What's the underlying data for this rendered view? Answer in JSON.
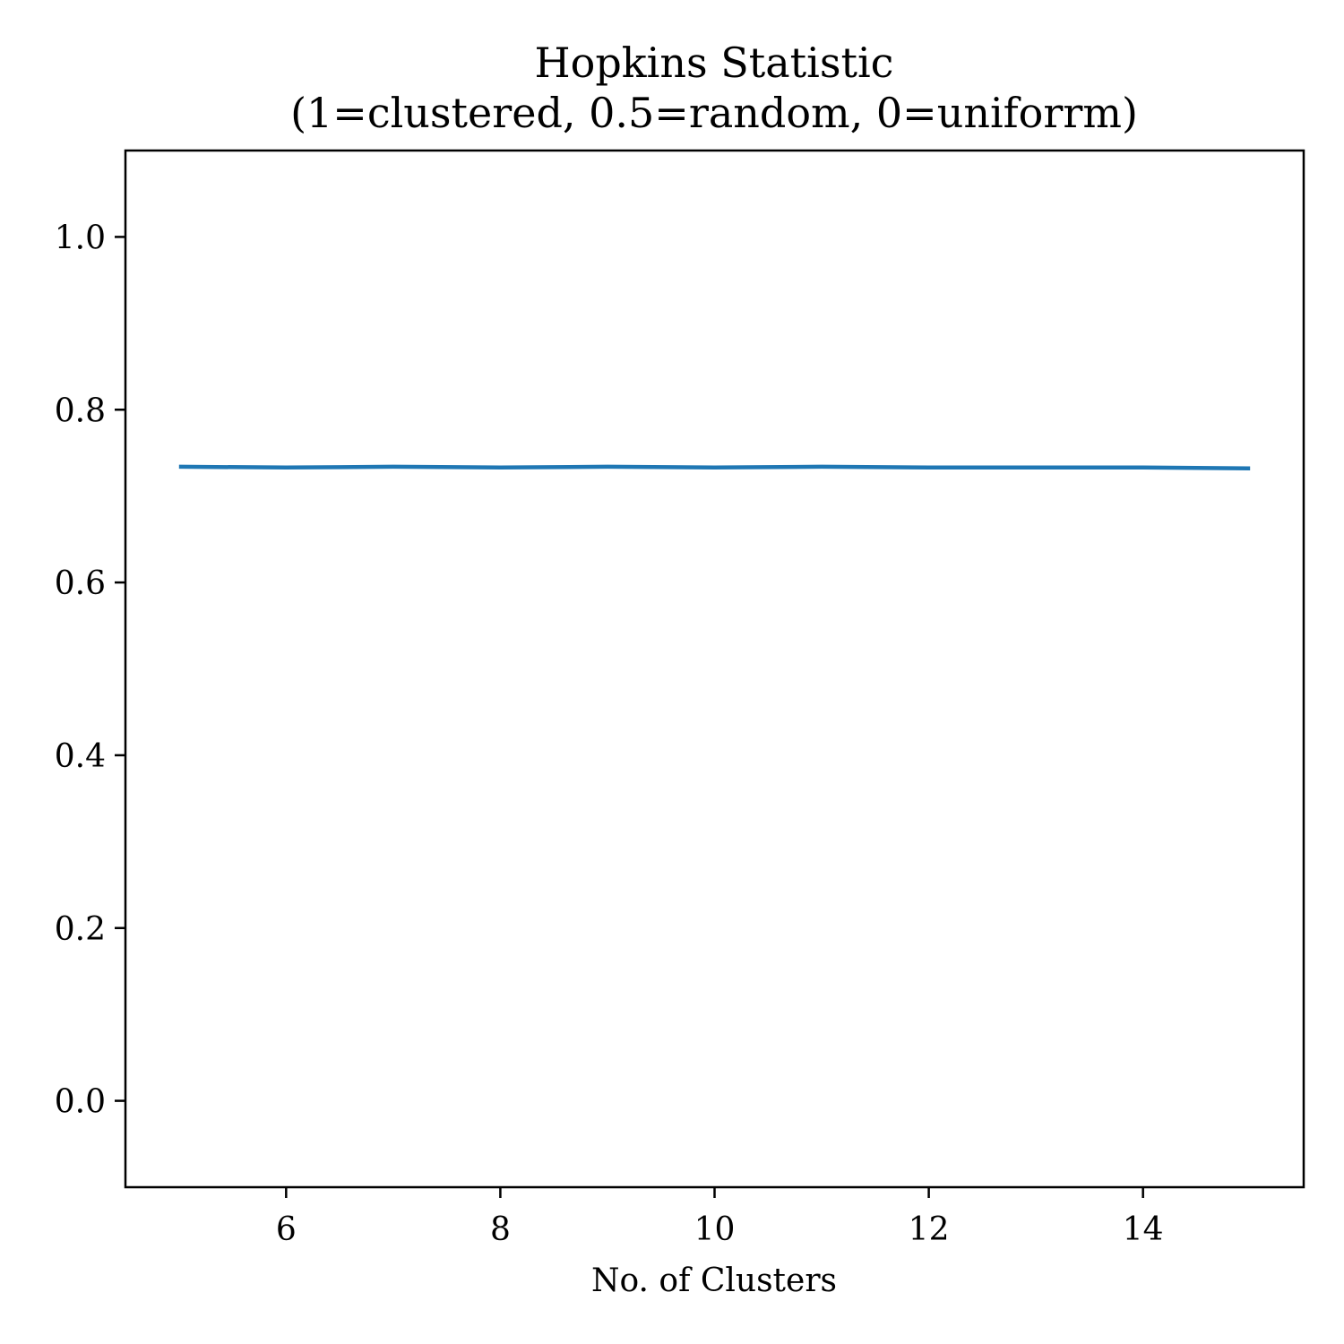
{
  "chart_data": {
    "type": "line",
    "title": "Hopkins Statistic",
    "subtitle": "(1=clustered, 0.5=random, 0=uniforrm)",
    "xlabel": "No. of Clusters",
    "ylabel": "",
    "xlim": [
      4.5,
      15.5
    ],
    "ylim": [
      -0.1,
      1.1
    ],
    "x_ticks": [
      6,
      8,
      10,
      12,
      14
    ],
    "y_ticks": [
      0.0,
      0.2,
      0.4,
      0.6,
      0.8,
      1.0
    ],
    "grid": false,
    "legend": "none",
    "series": [
      {
        "color": "#1f77b4",
        "x": [
          5,
          6,
          7,
          8,
          9,
          10,
          11,
          12,
          13,
          14,
          15
        ],
        "y": [
          0.734,
          0.733,
          0.734,
          0.733,
          0.734,
          0.733,
          0.734,
          0.733,
          0.733,
          0.733,
          0.732
        ]
      }
    ]
  }
}
